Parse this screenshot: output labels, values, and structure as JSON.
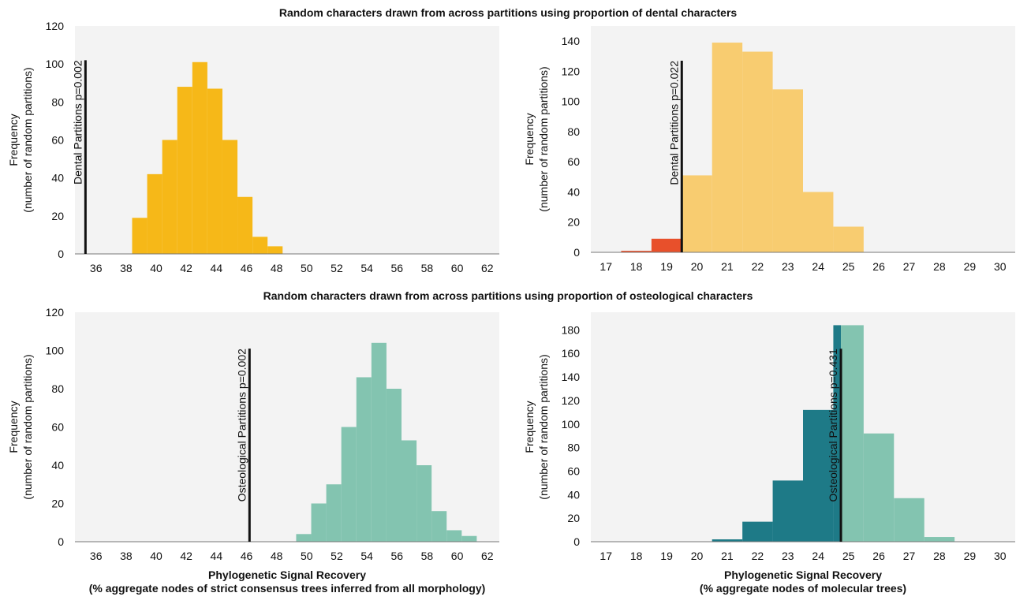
{
  "section_titles": [
    "Random characters drawn from across partitions using proportion of dental characters",
    "Random characters drawn from across partitions using proportion of osteological characters"
  ],
  "colors": {
    "plot_bg": "#f3f3f3",
    "dental_morph": "#f6b818",
    "dental_mol": "#f8cc70",
    "dental_mol_below": "#e8502b",
    "osteo_morph": "#83c4b0",
    "osteo_mol": "#83c4b0",
    "osteo_mol_below": "#1e7a87",
    "ref_line": "#111111"
  },
  "chart_data": [
    {
      "type": "bar",
      "panel": "dental-morphology",
      "ylabel": "Frequency\n(number of random partitions)",
      "xlabel": "",
      "ylim": [
        0,
        120
      ],
      "yticks": [
        0,
        20,
        40,
        60,
        80,
        100,
        120
      ],
      "xlim": [
        34.6,
        62.8
      ],
      "xticks": [
        "36",
        "38",
        "40",
        "42",
        "44",
        "46",
        "48",
        "50",
        "52",
        "54",
        "56",
        "58",
        "60",
        "62"
      ],
      "bin_width": 1,
      "bins": [
        {
          "start": 38.4,
          "value": 19
        },
        {
          "start": 39.4,
          "value": 42
        },
        {
          "start": 40.4,
          "value": 60
        },
        {
          "start": 41.4,
          "value": 88
        },
        {
          "start": 42.4,
          "value": 101
        },
        {
          "start": 43.4,
          "value": 87
        },
        {
          "start": 44.4,
          "value": 60
        },
        {
          "start": 45.4,
          "value": 30
        },
        {
          "start": 46.4,
          "value": 9
        },
        {
          "start": 47.4,
          "value": 4
        }
      ],
      "reference": {
        "label": "Dental Partitions p=0.002",
        "x": 35.3,
        "top": 102
      }
    },
    {
      "type": "bar",
      "panel": "dental-molecular",
      "ylabel": "Frequency\n(number of random partitions)",
      "xlabel": "",
      "ylim": [
        0,
        150
      ],
      "yticks": [
        0,
        20,
        40,
        60,
        80,
        100,
        120,
        140
      ],
      "xlim": [
        16.5,
        30.5
      ],
      "xticks": [
        "17",
        "18",
        "19",
        "20",
        "21",
        "22",
        "23",
        "24",
        "25",
        "26",
        "27",
        "28",
        "29",
        "30"
      ],
      "bin_width": 1,
      "bins": [
        {
          "start": 17.5,
          "value": 1,
          "below": true
        },
        {
          "start": 18.5,
          "value": 9,
          "below": true
        },
        {
          "start": 19.5,
          "value": 51
        },
        {
          "start": 20.5,
          "value": 139
        },
        {
          "start": 21.5,
          "value": 133
        },
        {
          "start": 22.5,
          "value": 108
        },
        {
          "start": 23.5,
          "value": 40
        },
        {
          "start": 24.5,
          "value": 17
        }
      ],
      "reference": {
        "label": "Dental Partitions p=0.022",
        "x": 19.5,
        "top": 127
      }
    },
    {
      "type": "bar",
      "panel": "osteological-morphology",
      "ylabel": "Frequency\n(number of random partitions)",
      "xlabel": "Phylogenetic Signal Recovery\n(% aggregate nodes of strict consensus trees inferred from all morphology)",
      "ylim": [
        0,
        120
      ],
      "yticks": [
        0,
        20,
        40,
        60,
        80,
        100,
        120
      ],
      "xlim": [
        34.6,
        62.8
      ],
      "xticks": [
        "36",
        "38",
        "40",
        "42",
        "44",
        "46",
        "48",
        "50",
        "52",
        "54",
        "56",
        "58",
        "60",
        "62"
      ],
      "bin_width": 1,
      "bins": [
        {
          "start": 49.3,
          "value": 4
        },
        {
          "start": 50.3,
          "value": 20
        },
        {
          "start": 51.3,
          "value": 30
        },
        {
          "start": 52.3,
          "value": 60
        },
        {
          "start": 53.3,
          "value": 86
        },
        {
          "start": 54.3,
          "value": 104
        },
        {
          "start": 55.3,
          "value": 80
        },
        {
          "start": 56.3,
          "value": 53
        },
        {
          "start": 57.3,
          "value": 40
        },
        {
          "start": 58.3,
          "value": 16
        },
        {
          "start": 59.3,
          "value": 6
        },
        {
          "start": 60.3,
          "value": 3
        }
      ],
      "reference": {
        "label": "Osteological Partitions p=0.002",
        "x": 46.2,
        "top": 101
      }
    },
    {
      "type": "bar",
      "panel": "osteological-molecular",
      "ylabel": "Frequency\n(number of random partitions)",
      "xlabel": "Phylogenetic Signal Recovery\n(% aggregate nodes of molecular trees)",
      "ylim": [
        0,
        195
      ],
      "yticks": [
        0,
        20,
        40,
        60,
        80,
        100,
        120,
        140,
        160,
        180
      ],
      "xlim": [
        16.5,
        30.5
      ],
      "xticks": [
        "17",
        "18",
        "19",
        "20",
        "21",
        "22",
        "23",
        "24",
        "25",
        "26",
        "27",
        "28",
        "29",
        "30"
      ],
      "bin_width": 1,
      "bins": [
        {
          "start": 20.5,
          "value": 2,
          "below": true
        },
        {
          "start": 21.5,
          "value": 17,
          "below": true
        },
        {
          "start": 22.5,
          "value": 52,
          "below": true
        },
        {
          "start": 23.5,
          "value": 112,
          "below": true
        },
        {
          "start": 24.5,
          "value": 184,
          "below": true,
          "width": 0.25
        },
        {
          "start": 24.75,
          "value": 184,
          "width": 0.75
        },
        {
          "start": 25.5,
          "value": 92
        },
        {
          "start": 26.5,
          "value": 37
        },
        {
          "start": 27.5,
          "value": 4
        }
      ],
      "reference": {
        "label": "Osteological Partitions p=0.431",
        "x": 24.75,
        "top": 164
      }
    }
  ]
}
